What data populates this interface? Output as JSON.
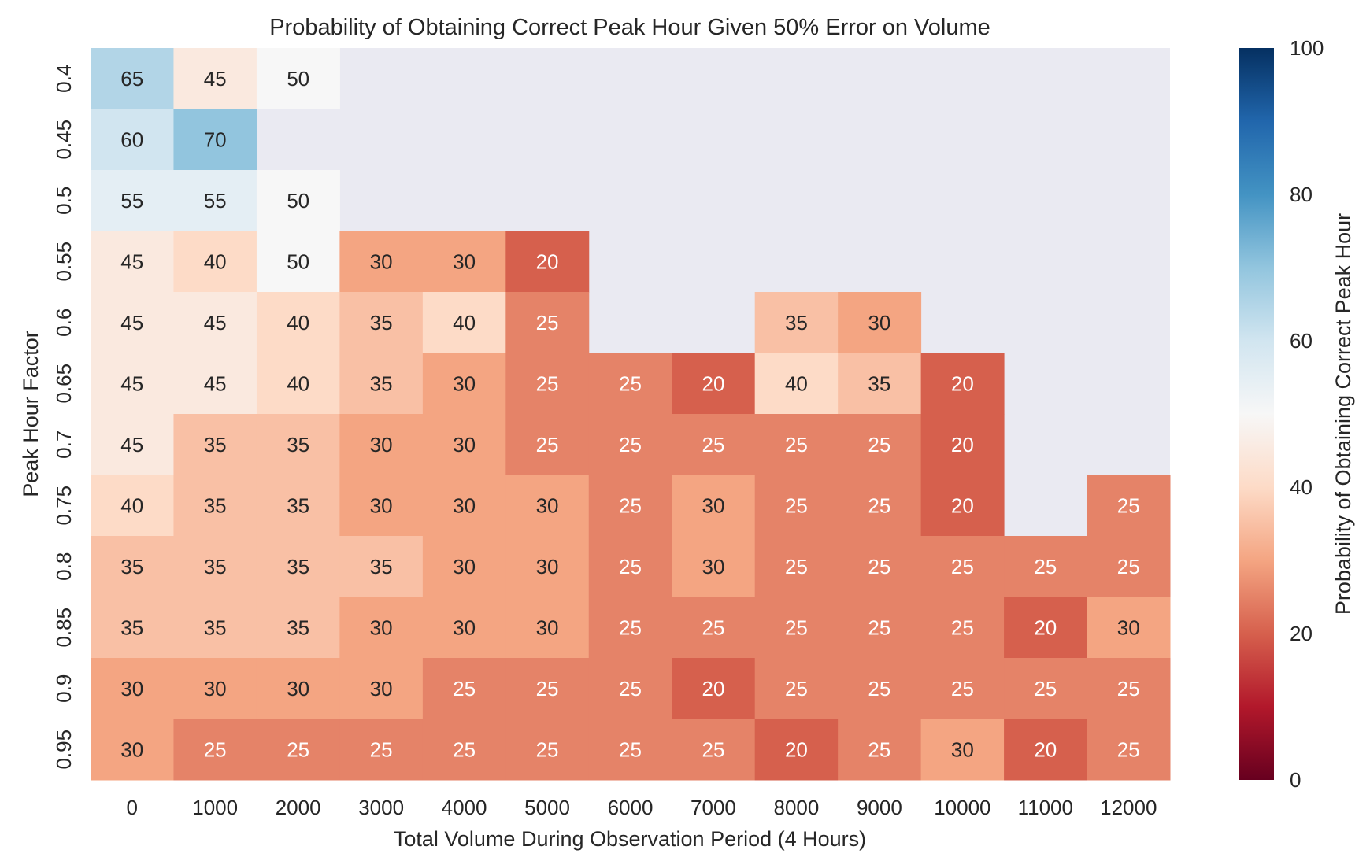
{
  "chart_data": {
    "type": "heatmap",
    "title": "Probability of Obtaining Correct Peak Hour Given 50% Error on Volume",
    "xlabel": "Total Volume During Observation Period (4 Hours)",
    "ylabel": "Peak Hour Factor",
    "x": [
      "0",
      "1000",
      "2000",
      "3000",
      "4000",
      "5000",
      "6000",
      "7000",
      "8000",
      "9000",
      "10000",
      "11000",
      "12000"
    ],
    "y": [
      "0.4",
      "0.45",
      "0.5",
      "0.55",
      "0.6",
      "0.65",
      "0.7",
      "0.75",
      "0.8",
      "0.85",
      "0.9",
      "0.95"
    ],
    "values": [
      [
        65,
        45,
        50,
        null,
        null,
        null,
        null,
        null,
        null,
        null,
        null,
        null,
        null
      ],
      [
        60,
        70,
        null,
        null,
        null,
        null,
        null,
        null,
        null,
        null,
        null,
        null,
        null
      ],
      [
        55,
        55,
        50,
        null,
        null,
        null,
        null,
        null,
        null,
        null,
        null,
        null,
        null
      ],
      [
        45,
        40,
        50,
        30,
        30,
        20,
        null,
        null,
        null,
        null,
        null,
        null,
        null
      ],
      [
        45,
        45,
        40,
        35,
        40,
        25,
        null,
        null,
        35,
        30,
        null,
        null,
        null
      ],
      [
        45,
        45,
        40,
        35,
        30,
        25,
        25,
        20,
        40,
        35,
        20,
        null,
        null
      ],
      [
        45,
        35,
        35,
        30,
        30,
        25,
        25,
        25,
        25,
        25,
        20,
        null,
        null
      ],
      [
        40,
        35,
        35,
        30,
        30,
        30,
        25,
        30,
        25,
        25,
        20,
        null,
        25
      ],
      [
        35,
        35,
        35,
        35,
        30,
        30,
        25,
        30,
        25,
        25,
        25,
        25,
        25
      ],
      [
        35,
        35,
        35,
        30,
        30,
        30,
        25,
        25,
        25,
        25,
        25,
        20,
        30
      ],
      [
        30,
        30,
        30,
        30,
        25,
        25,
        25,
        20,
        25,
        25,
        25,
        25,
        25
      ],
      [
        30,
        25,
        25,
        25,
        25,
        25,
        25,
        25,
        20,
        25,
        30,
        20,
        25
      ]
    ],
    "colormap": "RdBu",
    "vmin": 0,
    "vmax": 100,
    "missing_color": "#EAEAF2",
    "colorbar": {
      "label": "Probability of Obtaining Correct Peak Hour",
      "ticks": [
        "0",
        "20",
        "40",
        "60",
        "80",
        "100"
      ]
    }
  }
}
